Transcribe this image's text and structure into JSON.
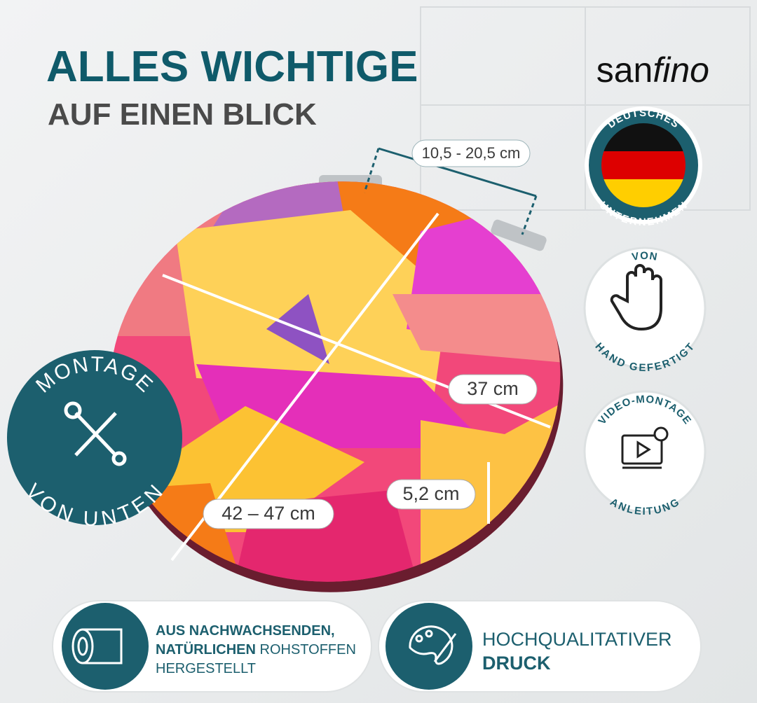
{
  "header": {
    "line1": "ALLES WICHTIGE",
    "line2": "AUF EINEN BLICK"
  },
  "brand": {
    "part1": "san",
    "part2": "fino"
  },
  "badges": {
    "company": {
      "top": "DEUTSCHES",
      "bottom": "UNTERNEHMEN"
    },
    "handmade": {
      "top": "VON",
      "bottom": "HAND GEFERTIGT"
    },
    "video": {
      "top": "VIDEO-MONTAGE",
      "bottom": "ANLEITUNG"
    },
    "mounting": {
      "top": "MONTAGE",
      "bottom": "VON UNTEN"
    }
  },
  "dimensions": {
    "hinge": "10,5 - 20,5 cm",
    "width": "37 cm",
    "length": "42 – 47 cm",
    "height": "5,2 cm"
  },
  "cards": [
    {
      "bold1": "AUS NACHWACHSENDEN,",
      "bold2": "NATÜRLICHEN",
      "normal2": "ROHSTOFFEN",
      "normal3": "HERGESTELLT"
    },
    {
      "normal1": "HOCHQUALITATIVER",
      "bold2": "DRUCK"
    }
  ]
}
